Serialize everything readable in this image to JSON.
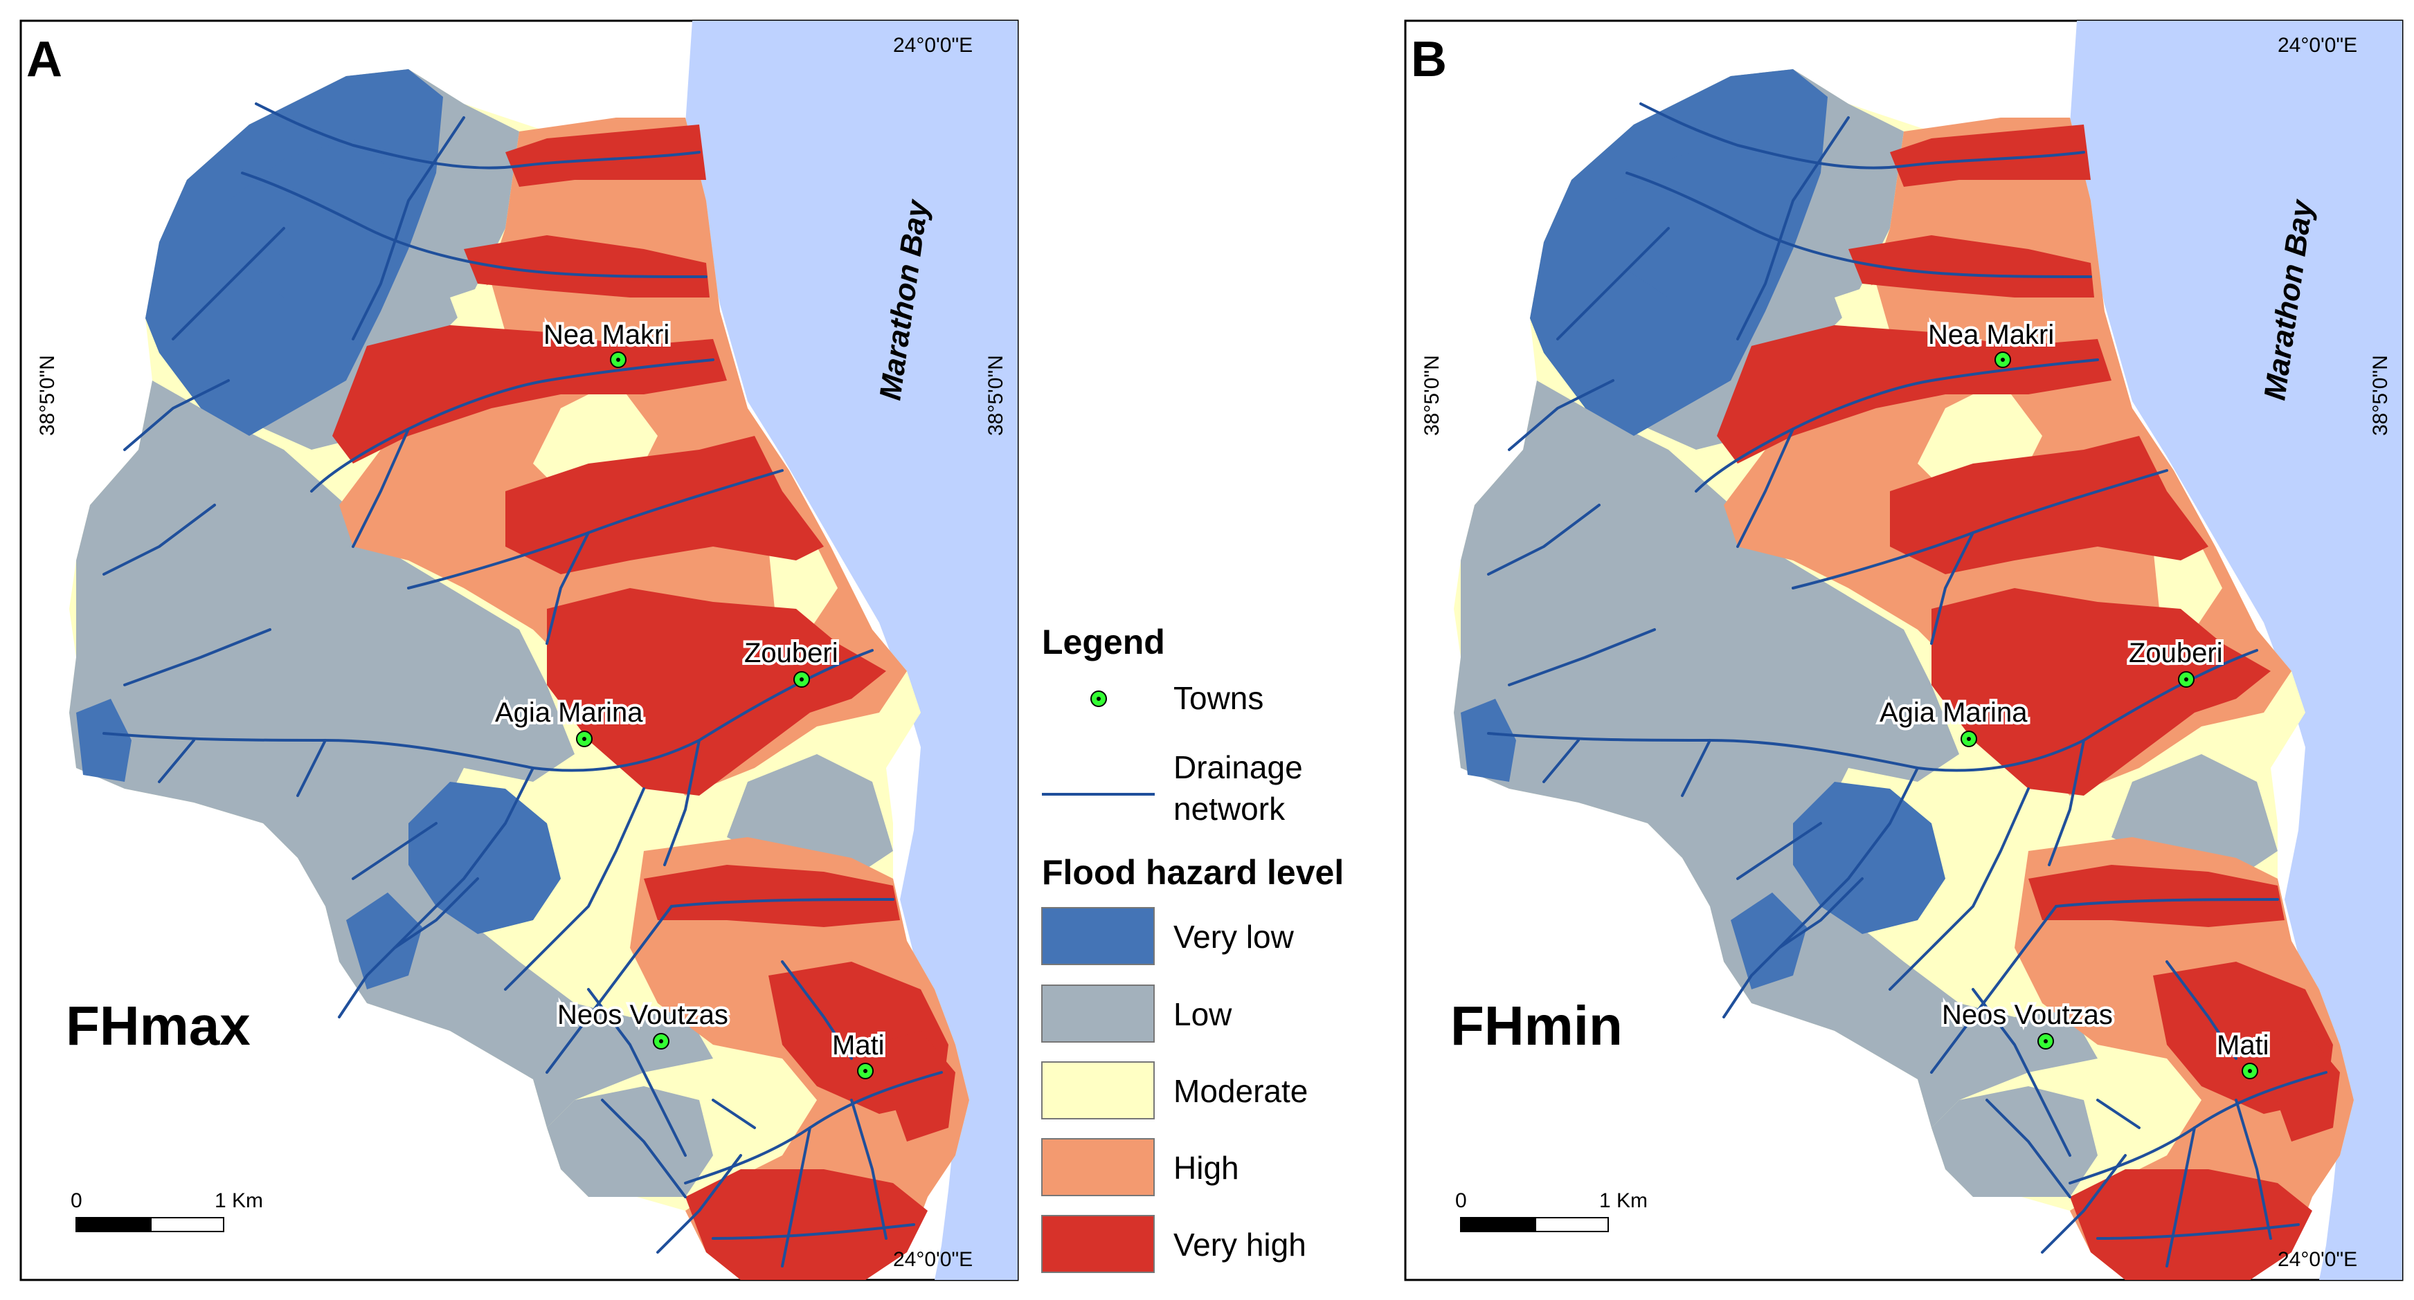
{
  "colors": {
    "sea": "#bed2ff",
    "very_low": "#4474b6",
    "low": "#a3b1bc",
    "moderate": "#ffffc4",
    "high": "#f39a70",
    "very_high": "#d7322a",
    "drainage": "#1f4f9b",
    "town": "#33ff33"
  },
  "panels": [
    {
      "letter": "A",
      "model": "FHmax",
      "sea_label": "Marathon Bay",
      "lon_top": "24°0'0\"E",
      "lon_bottom": "24°0'0\"E",
      "lat_left": "38°5'0\"N",
      "lat_right": "38°5'0\"N",
      "scale_zero": "0",
      "scale_km": "1 Km"
    },
    {
      "letter": "B",
      "model": "FHmin",
      "sea_label": "Marathon Bay",
      "lon_top": "24°0'0\"E",
      "lon_bottom": "24°0'0\"E",
      "lat_left": "38°5'0\"N",
      "lat_right": "38°5'0\"N",
      "scale_zero": "0",
      "scale_km": "1 Km"
    }
  ],
  "towns": [
    "Nea Makri",
    "Zouberi",
    "Agia Marina",
    "Neos Voutzas",
    "Mati"
  ],
  "legend": {
    "title": "Legend",
    "towns_label": "Towns",
    "drainage_label_line1": "Drainage",
    "drainage_label_line2": "network",
    "hazard_title": "Flood hazard level",
    "classes": [
      {
        "label": "Very low",
        "color": "#4474b6"
      },
      {
        "label": "Low",
        "color": "#a3b1bc"
      },
      {
        "label": "Moderate",
        "color": "#ffffc4"
      },
      {
        "label": "High",
        "color": "#f39a70"
      },
      {
        "label": "Very high",
        "color": "#d7322a"
      }
    ]
  }
}
